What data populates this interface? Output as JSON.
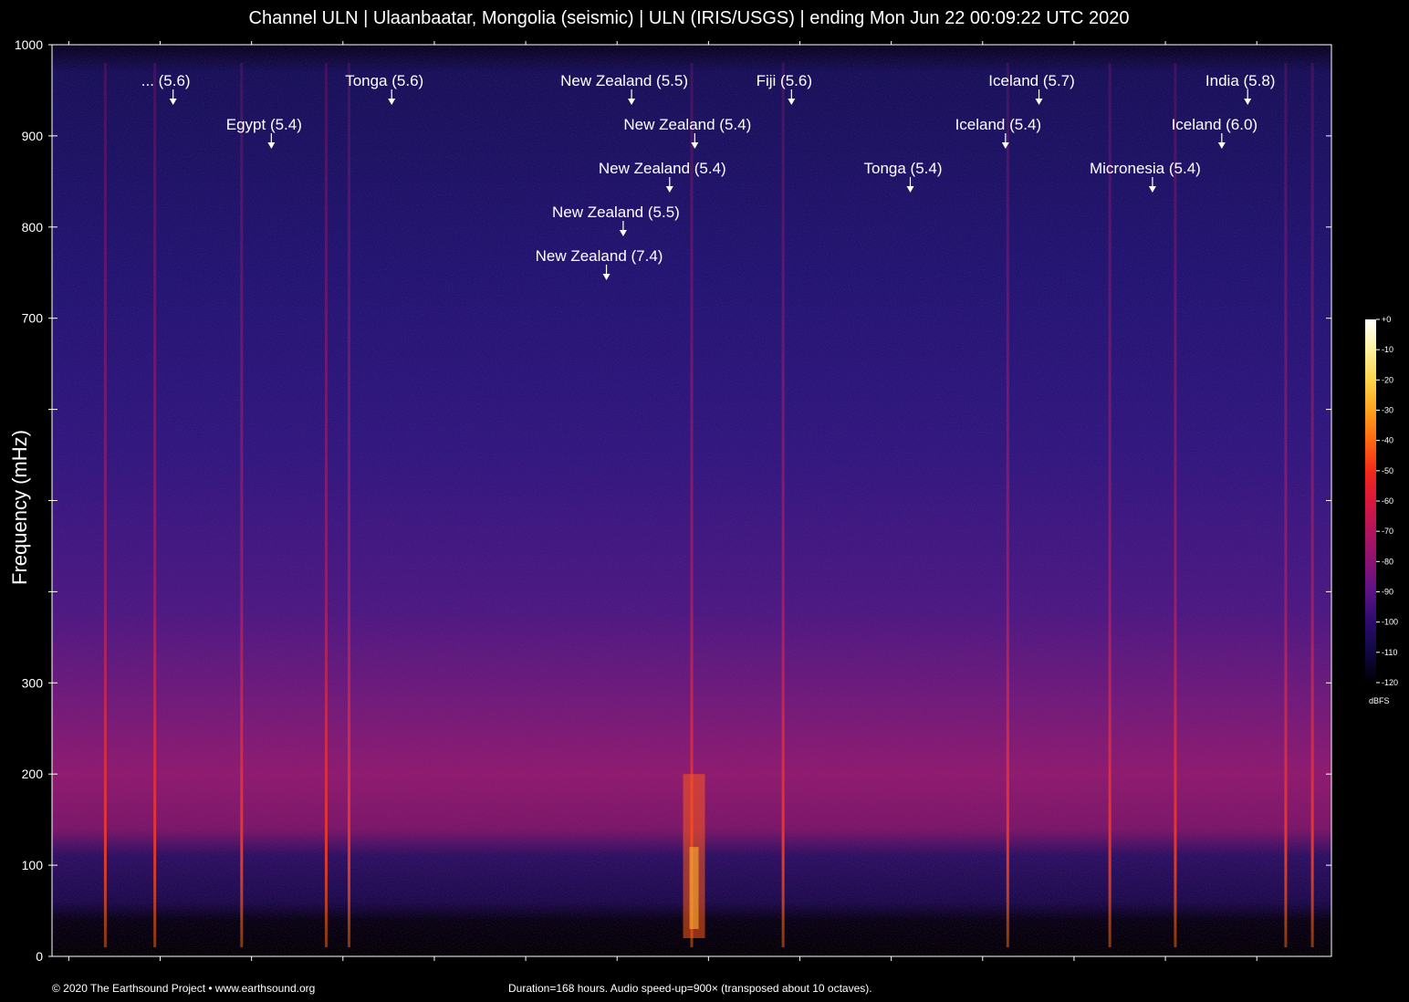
{
  "title": "Channel ULN | Ulaanbaatar, Mongolia (seismic) | ULN (IRIS/USGS) | ending Mon Jun 22 00:09:22 UTC 2020",
  "footer": {
    "copyright": "© 2020 The Earthsound Project • www.earthsound.org",
    "note": "Duration=168 hours. Audio speed-up=900× (transposed about 10 octaves)."
  },
  "chart_data": {
    "type": "heatmap",
    "title": "Channel ULN | Ulaanbaatar, Mongolia (seismic) | ULN (IRIS/USGS) | ending Mon Jun 22 00:09:22 UTC 2020",
    "ylabel": "Frequency (mHz)",
    "xlabel": "",
    "ylim": [
      0,
      1000
    ],
    "yticks": [
      0,
      100,
      200,
      300,
      400,
      500,
      600,
      700,
      800,
      900,
      1000
    ],
    "ytick_labels": [
      "0",
      "100",
      "200",
      "300",
      "",
      "",
      "",
      "700",
      "800",
      "900",
      "1000"
    ],
    "xlim_hours": [
      0,
      168
    ],
    "grid": false,
    "colorbar": {
      "unit": "dBFS",
      "ticks": [
        "+0",
        "-10",
        "-20",
        "-30",
        "-40",
        "-50",
        "-60",
        "-70",
        "-80",
        "-90",
        "-100",
        "-110",
        "-120"
      ],
      "colors": [
        "#ffffff",
        "#fff3a0",
        "#ffd24a",
        "#ffa21e",
        "#ff6a10",
        "#f2281a",
        "#d8183c",
        "#b4145c",
        "#8a1274",
        "#5c1286",
        "#2c0c6e",
        "#0e0840",
        "#000000"
      ]
    },
    "annotations": [
      {
        "label": "... (5.6)",
        "hour": 15.9,
        "row": 1
      },
      {
        "label": "Egypt (5.4)",
        "hour": 28.8,
        "row": 2
      },
      {
        "label": "Tonga (5.6)",
        "hour": 44.6,
        "row": 1
      },
      {
        "label": "New Zealand (5.5)",
        "hour": 76.1,
        "row": 1
      },
      {
        "label": "New Zealand (5.4)",
        "hour": 84.4,
        "row": 2
      },
      {
        "label": "New Zealand (5.4)",
        "hour": 81.1,
        "row": 3
      },
      {
        "label": "New Zealand (5.5)",
        "hour": 75.0,
        "row": 4
      },
      {
        "label": "New Zealand (7.4)",
        "hour": 72.8,
        "row": 5
      },
      {
        "label": "Fiji (5.6)",
        "hour": 97.1,
        "row": 1
      },
      {
        "label": "Tonga (5.4)",
        "hour": 112.7,
        "row": 3
      },
      {
        "label": "Iceland (5.7)",
        "hour": 129.6,
        "row": 1
      },
      {
        "label": "Iceland (5.4)",
        "hour": 125.2,
        "row": 2
      },
      {
        "label": "Micronesia (5.4)",
        "hour": 144.5,
        "row": 3
      },
      {
        "label": "India (5.8)",
        "hour": 157.0,
        "row": 1
      },
      {
        "label": "Iceland (6.0)",
        "hour": 153.6,
        "row": 2
      }
    ],
    "event_streaks_hours": [
      7.0,
      13.5,
      24.9,
      36.0,
      39.0,
      84.0,
      96.0,
      125.5,
      138.9,
      147.5,
      162.0,
      165.5
    ]
  }
}
